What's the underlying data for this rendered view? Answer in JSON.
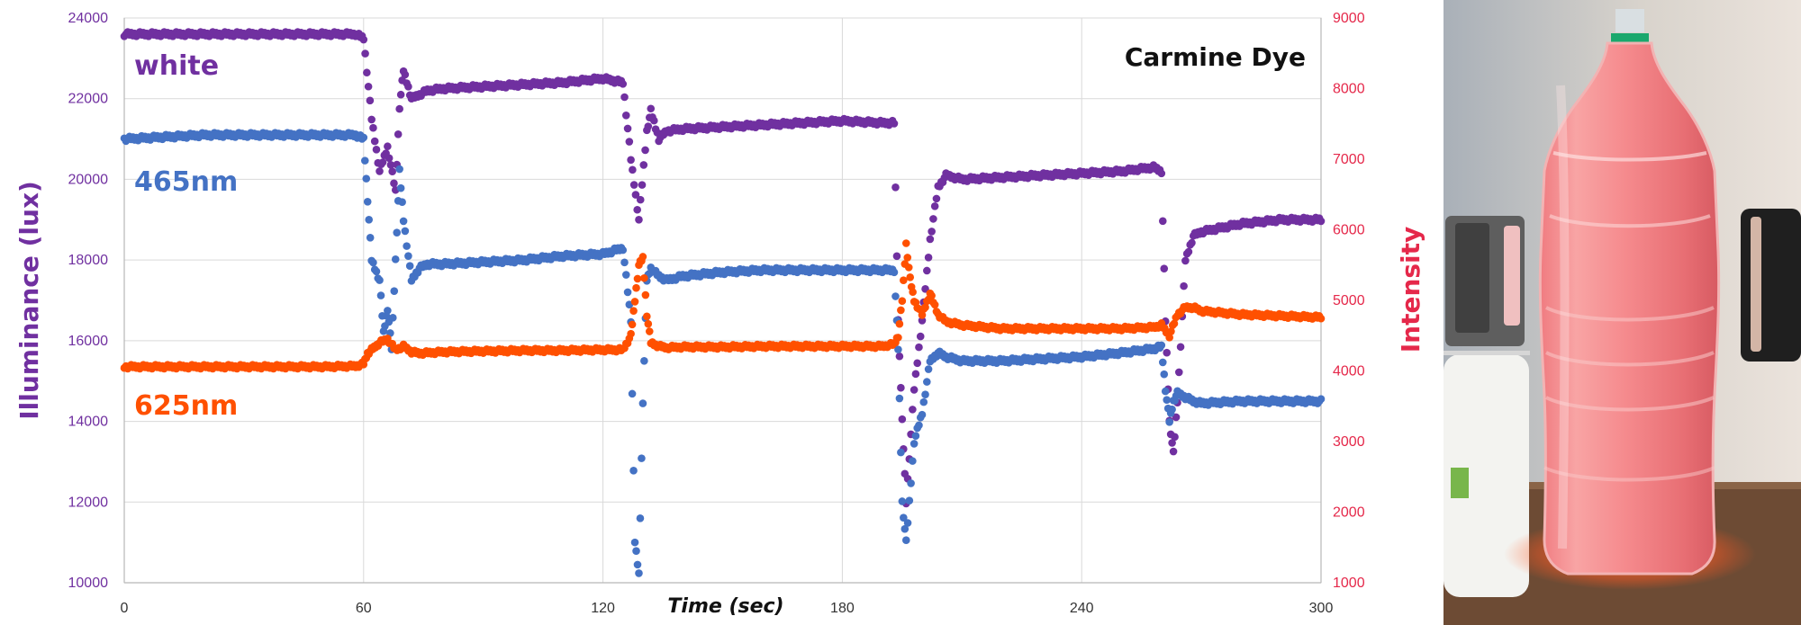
{
  "chart_data": {
    "type": "scatter",
    "title": "Carmine Dye",
    "xlabel": "Time (sec)",
    "ylabel_left": "Illuminance (lux)",
    "ylabel_right": "Intensity",
    "xlim": [
      0,
      300
    ],
    "x_ticks": [
      "0",
      "60",
      "120",
      "180",
      "240",
      "300"
    ],
    "ylim_left": [
      10000,
      24000
    ],
    "y_ticks_left": [
      "10000",
      "12000",
      "14000",
      "16000",
      "18000",
      "20000",
      "22000",
      "24000"
    ],
    "ylim_right": [
      1000,
      9000
    ],
    "y_ticks_right": [
      "1000",
      "2000",
      "3000",
      "4000",
      "5000",
      "6000",
      "7000",
      "8000",
      "9000"
    ],
    "grid": true,
    "colors": {
      "white": "#7030A0",
      "465nm": "#4472C4",
      "625nm": "#FF5000",
      "left_axis": "#7030A0",
      "right_axis": "#E5284A"
    },
    "series": [
      {
        "name": "white",
        "axis": "left",
        "color": "#7030A0",
        "x": [
          0,
          10,
          20,
          30,
          40,
          50,
          58,
          60,
          62,
          64,
          66,
          68,
          69,
          70,
          72,
          74,
          76,
          80,
          90,
          100,
          110,
          120,
          125,
          127,
          129,
          131,
          132,
          134,
          136,
          140,
          150,
          160,
          170,
          180,
          190,
          193,
          194,
          195,
          196,
          198,
          200,
          202,
          204,
          206,
          210,
          220,
          230,
          240,
          250,
          258,
          260,
          261,
          262,
          263,
          264,
          266,
          268,
          270,
          280,
          290,
          300
        ],
        "y": [
          23600,
          23600,
          23600,
          23600,
          23600,
          23600,
          23600,
          23500,
          21500,
          20200,
          20800,
          19700,
          21800,
          22700,
          22000,
          22100,
          22200,
          22250,
          22300,
          22350,
          22400,
          22500,
          22400,
          20500,
          19000,
          21200,
          21700,
          21000,
          21200,
          21250,
          21300,
          21350,
          21400,
          21450,
          21400,
          21400,
          16500,
          14000,
          12000,
          14800,
          16500,
          18500,
          19800,
          20100,
          20000,
          20050,
          20100,
          20150,
          20200,
          20300,
          20200,
          16500,
          14000,
          13200,
          14500,
          18000,
          18600,
          18700,
          18900,
          19000,
          19000
        ]
      },
      {
        "name": "465nm",
        "axis": "left",
        "color": "#4472C4",
        "x": [
          0,
          10,
          20,
          30,
          40,
          50,
          58,
          60,
          61,
          62,
          64,
          65,
          66,
          67,
          68,
          69,
          70,
          72,
          74,
          76,
          80,
          90,
          100,
          110,
          120,
          125,
          127,
          128,
          129,
          130,
          131,
          132,
          134,
          136,
          140,
          150,
          160,
          170,
          180,
          190,
          193,
          194,
          195,
          196,
          198,
          200,
          202,
          204,
          206,
          210,
          220,
          230,
          240,
          250,
          258,
          260,
          261,
          262,
          263,
          264,
          266,
          268,
          270,
          280,
          290,
          300
        ],
        "y": [
          21000,
          21050,
          21100,
          21100,
          21100,
          21100,
          21100,
          21000,
          19500,
          18000,
          17500,
          16200,
          16800,
          15800,
          18000,
          20200,
          19000,
          17500,
          17800,
          17900,
          17900,
          17950,
          18000,
          18100,
          18150,
          18300,
          16500,
          11000,
          10200,
          14500,
          17500,
          17800,
          17600,
          17500,
          17600,
          17700,
          17750,
          17750,
          17750,
          17750,
          17750,
          15800,
          12000,
          11000,
          13500,
          14200,
          15500,
          15700,
          15600,
          15500,
          15500,
          15550,
          15600,
          15700,
          15800,
          15850,
          14800,
          14000,
          14500,
          14700,
          14600,
          14500,
          14450,
          14500,
          14500,
          14500
        ]
      },
      {
        "name": "625nm",
        "axis": "right",
        "color": "#FF5000",
        "x": [
          0,
          10,
          20,
          30,
          40,
          50,
          58,
          60,
          61,
          62,
          63,
          64,
          66,
          68,
          70,
          72,
          74,
          80,
          90,
          100,
          110,
          120,
          125,
          127,
          128,
          129,
          130,
          131,
          132,
          134,
          136,
          140,
          150,
          160,
          170,
          180,
          190,
          193,
          194,
          195,
          196,
          197,
          198,
          200,
          202,
          204,
          206,
          210,
          220,
          230,
          240,
          250,
          258,
          260,
          262,
          264,
          266,
          268,
          270,
          280,
          290,
          300
        ],
        "y": [
          4060,
          4060,
          4060,
          4060,
          4060,
          4060,
          4070,
          4100,
          4250,
          4300,
          4350,
          4400,
          4450,
          4300,
          4350,
          4270,
          4250,
          4270,
          4280,
          4290,
          4290,
          4300,
          4300,
          4500,
          5000,
          5500,
          5600,
          4800,
          4400,
          4350,
          4330,
          4340,
          4340,
          4350,
          4350,
          4350,
          4350,
          4380,
          4500,
          5000,
          5800,
          5300,
          5000,
          4800,
          5100,
          4800,
          4700,
          4650,
          4600,
          4600,
          4600,
          4600,
          4620,
          4650,
          4500,
          4800,
          4900,
          4900,
          4850,
          4800,
          4780,
          4760
        ]
      }
    ],
    "annotations": [
      {
        "text": "white",
        "color": "#7030A0"
      },
      {
        "text": "465nm",
        "color": "#4472C4"
      },
      {
        "text": "625nm",
        "color": "#FF5000"
      }
    ]
  },
  "photo": {
    "icon": "bottle-photo-icon",
    "colors": {
      "wall": "#d9d2c9",
      "table": "#6b4b32",
      "bottle": "#f27f84",
      "cap": "#d7dde0",
      "band": "#1ba36d",
      "glow": "#ff5f30"
    }
  }
}
